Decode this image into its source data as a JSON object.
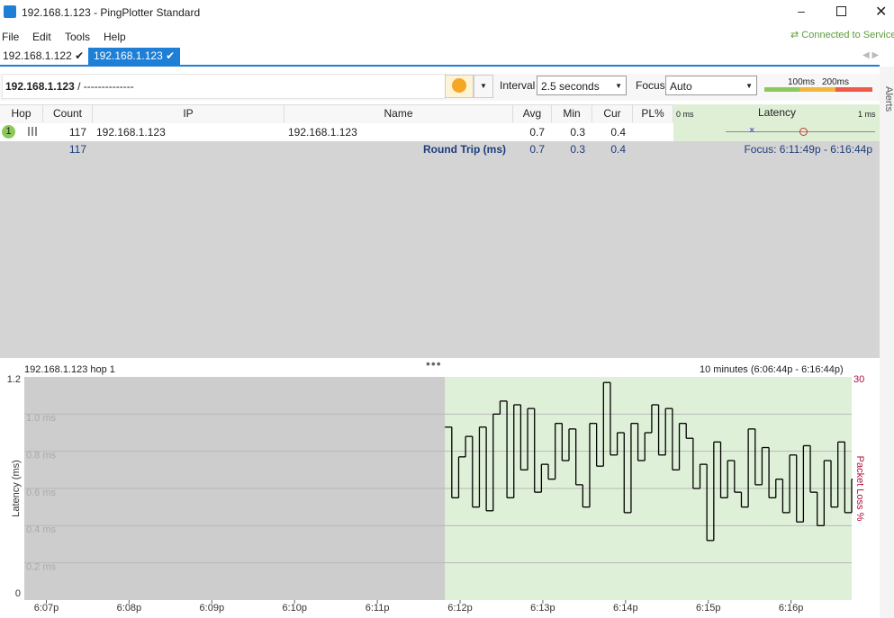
{
  "window": {
    "title": "192.168.1.123 - PingPlotter Standard"
  },
  "menu": [
    "File",
    "Edit",
    "Tools",
    "Help"
  ],
  "status": "Connected to Service",
  "tabs": [
    "192.168.1.122",
    "192.168.1.123"
  ],
  "toolbar": {
    "target": "192.168.1.123",
    "path": "/ --------------",
    "interval_label": "Interval",
    "interval": "2.5 seconds",
    "focus_label": "Focus",
    "focus": "Auto",
    "scale": [
      "100ms",
      "200ms"
    ]
  },
  "side_tab": "Alerts",
  "table": {
    "columns": [
      "Hop",
      "Count",
      "IP",
      "Name",
      "Avg",
      "Min",
      "Cur",
      "PL%"
    ],
    "latency_header": "Latency",
    "latency_min": "0 ms",
    "latency_max": "1 ms",
    "rows": [
      {
        "hop": 1,
        "count": 117,
        "ip": "192.168.1.123",
        "name": "192.168.1.123",
        "avg": 0.7,
        "min": 0.3,
        "cur": 0.4
      }
    ],
    "summary": {
      "count": 117,
      "label": "Round Trip (ms)",
      "avg": 0.7,
      "min": 0.3,
      "cur": 0.4,
      "focus": "Focus: 6:11:49p - 6:16:44p"
    }
  },
  "chart_data": {
    "type": "line",
    "title": "192.168.1.123 hop 1",
    "subtitle": "10 minutes (6:06:44p - 6:16:44p)",
    "ylabel": "Latency (ms)",
    "y2label": "Packet Loss %",
    "color": "#000000",
    "x": [
      305,
      310,
      315,
      320,
      325,
      330,
      335,
      340,
      345,
      350,
      355,
      360,
      365,
      370,
      375,
      380,
      385,
      390,
      395,
      400,
      405,
      410,
      415,
      420,
      425,
      430,
      435,
      440,
      445,
      450,
      455,
      460,
      465,
      470,
      475,
      480,
      485,
      490,
      495,
      500,
      505,
      510,
      515,
      520,
      525,
      530,
      535,
      540,
      545,
      550,
      555,
      560,
      565,
      570,
      575,
      580,
      585,
      590,
      595,
      600
    ],
    "values": [
      0.93,
      0.55,
      0.77,
      0.88,
      0.5,
      0.93,
      0.48,
      1.0,
      1.07,
      0.55,
      1.05,
      0.7,
      1.03,
      0.58,
      0.73,
      0.65,
      0.95,
      0.75,
      0.92,
      0.62,
      0.5,
      0.95,
      0.72,
      1.17,
      0.78,
      0.9,
      0.47,
      0.95,
      0.75,
      0.9,
      1.05,
      0.78,
      1.03,
      0.7,
      0.95,
      0.87,
      0.6,
      0.73,
      0.32,
      0.85,
      0.55,
      0.75,
      0.58,
      0.5,
      0.92,
      0.62,
      0.82,
      0.55,
      0.65,
      0.47,
      0.78,
      0.42,
      0.83,
      0.58,
      0.4,
      0.75,
      0.5,
      0.85,
      0.47,
      0.65
    ],
    "xlim": [
      0,
      600
    ],
    "xticks": [
      {
        "value": 16,
        "label": "6:07p"
      },
      {
        "value": 76,
        "label": "6:08p"
      },
      {
        "value": 136,
        "label": "6:09p"
      },
      {
        "value": 196,
        "label": "6:10p"
      },
      {
        "value": 256,
        "label": "6:11p"
      },
      {
        "value": 316,
        "label": "6:12p"
      },
      {
        "value": 376,
        "label": "6:13p"
      },
      {
        "value": 436,
        "label": "6:14p"
      },
      {
        "value": 496,
        "label": "6:15p"
      },
      {
        "value": 556,
        "label": "6:16p"
      }
    ],
    "ylim": [
      0,
      1.2
    ],
    "yticks": [
      0,
      {
        "value": 0.2,
        "label": "0.2 ms"
      },
      {
        "value": 0.4,
        "label": "0.4 ms"
      },
      {
        "value": 0.6,
        "label": "0.6 ms"
      },
      {
        "value": 0.8,
        "label": "0.8 ms"
      },
      {
        "value": 1.0,
        "label": "1.0 ms"
      },
      1.2
    ],
    "y2lim": [
      0,
      30
    ],
    "y2ticks": [
      30
    ],
    "grid": true
  }
}
